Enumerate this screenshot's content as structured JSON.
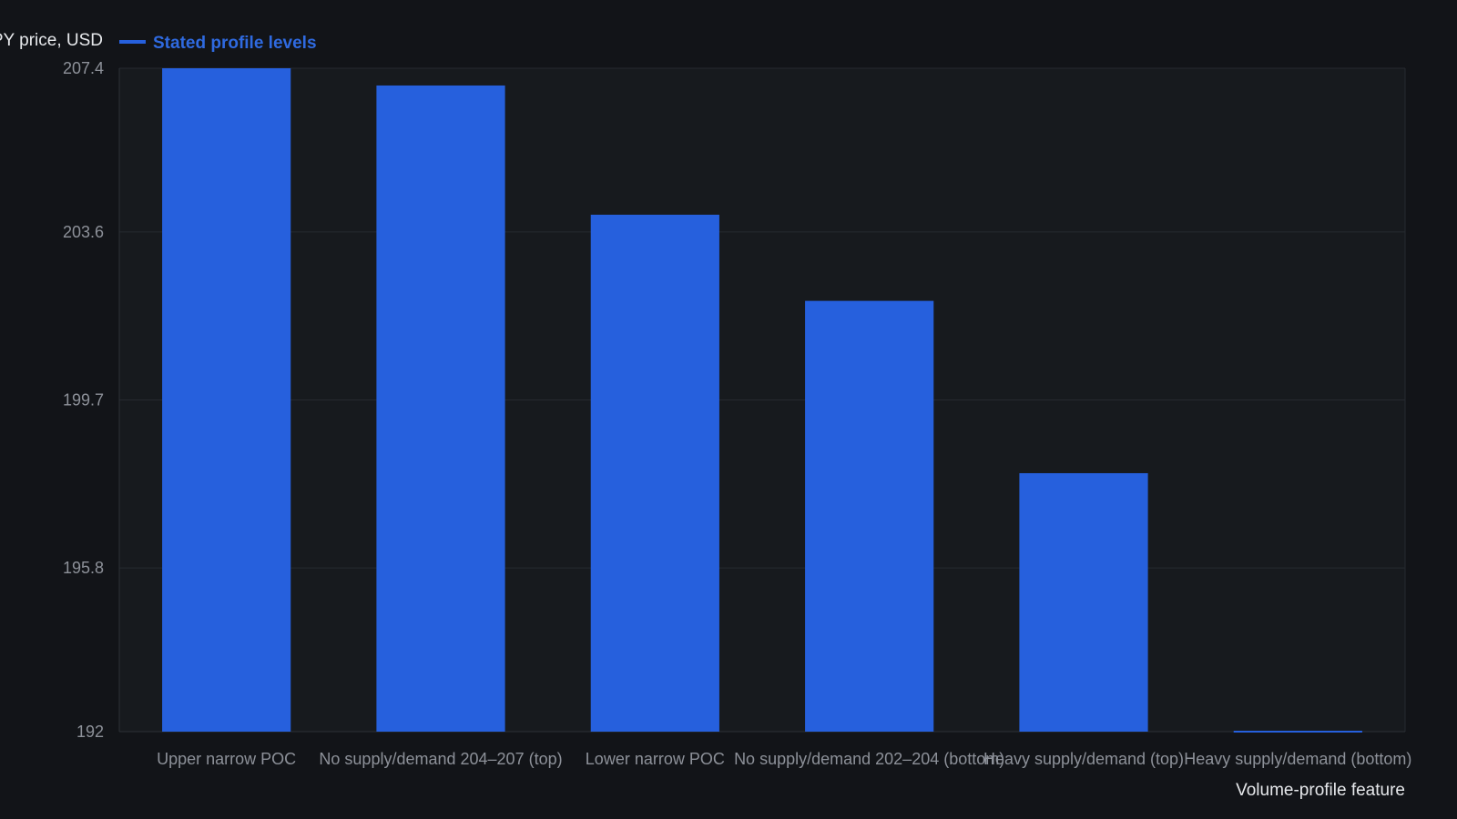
{
  "colors": {
    "background": "#121418",
    "plot_background": "#171a1e",
    "grid": "#262a30",
    "bar": "#2660dd",
    "legend_text": "#2f6ae0"
  },
  "chart_data": {
    "type": "bar",
    "title": "",
    "xlabel": "Volume-profile feature",
    "ylabel": "SPY price, USD",
    "categories": [
      "Upper narrow POC",
      "No supply/demand 204–207 (top)",
      "Lower narrow POC",
      "No supply/demand 202–204 (bottom)",
      "Heavy supply/demand (top)",
      "Heavy supply/demand (bottom)"
    ],
    "series": [
      {
        "name": "Stated profile levels",
        "values": [
          207.4,
          207.0,
          204.0,
          202.0,
          198.0,
          192.0
        ]
      }
    ],
    "ylim": [
      192,
      207.4
    ],
    "yticks": [
      "192",
      "195.8",
      "199.7",
      "203.6",
      "207.4"
    ],
    "grid": true,
    "legend": "top-left"
  }
}
